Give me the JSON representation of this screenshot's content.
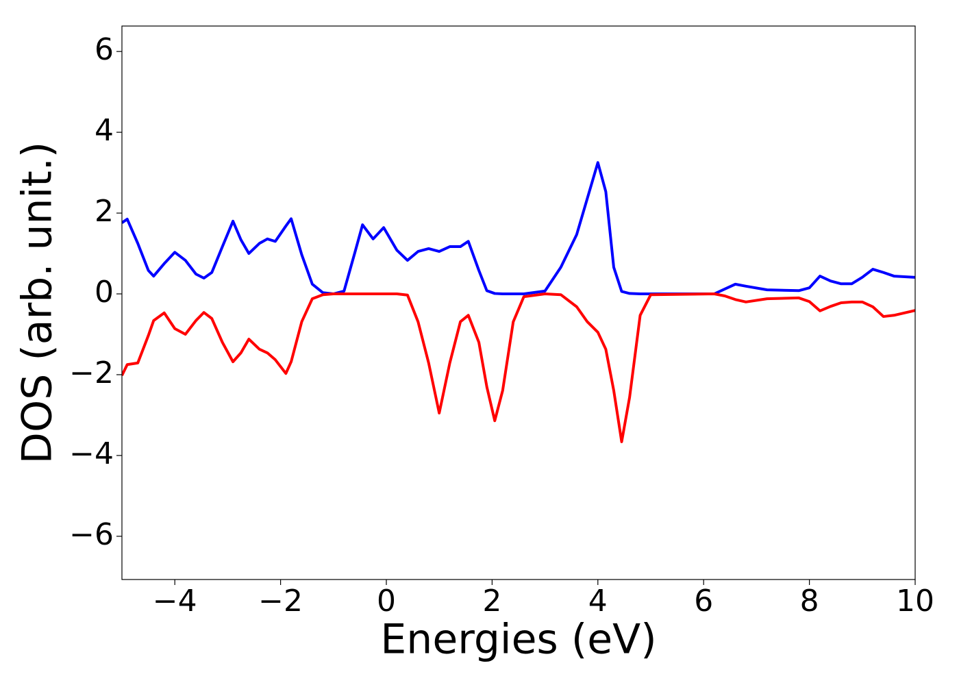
{
  "chart_data": {
    "type": "line",
    "xlabel": "Energies (eV)",
    "ylabel": "DOS (arb. unit.)",
    "xlim": [
      -5,
      10
    ],
    "ylim": [
      -7.07,
      6.63
    ],
    "xticks": [
      {
        "value": -4,
        "label": "−4"
      },
      {
        "value": -2,
        "label": "−2"
      },
      0,
      2,
      4,
      6,
      8,
      10
    ],
    "yticks": [
      {
        "value": -6,
        "label": "−6"
      },
      {
        "value": -4,
        "label": "−4"
      },
      {
        "value": -2,
        "label": "−2"
      },
      0,
      2,
      4,
      6
    ],
    "grid": false,
    "x": [
      -5,
      -4.9,
      -4.7,
      -4.5,
      -4.4,
      -4.2,
      -4,
      -3.8,
      -3.6,
      -3.45,
      -3.3,
      -3.1,
      -2.9,
      -2.75,
      -2.6,
      -2.4,
      -2.25,
      -2.1,
      -1.9,
      -1.8,
      -1.6,
      -1.4,
      -1.2,
      -1,
      -0.8,
      -0.6,
      -0.45,
      -0.25,
      -0.05,
      0.2,
      0.4,
      0.6,
      0.8,
      1.0,
      1.2,
      1.4,
      1.55,
      1.75,
      1.9,
      2.05,
      2.2,
      2.4,
      2.6,
      3.0,
      3.3,
      3.6,
      3.8,
      4.0,
      4.15,
      4.3,
      4.45,
      4.6,
      4.8,
      5.0,
      6.2,
      6.4,
      6.6,
      6.8,
      7.2,
      7.8,
      8.0,
      8.2,
      8.4,
      8.6,
      8.8,
      9.0,
      9.2,
      9.4,
      9.6,
      10
    ],
    "series": [
      {
        "color": "#0000ff",
        "values": [
          1.76,
          1.85,
          1.25,
          0.58,
          0.44,
          0.75,
          1.03,
          0.83,
          0.49,
          0.39,
          0.53,
          1.17,
          1.8,
          1.34,
          1.0,
          1.25,
          1.36,
          1.3,
          1.68,
          1.86,
          0.97,
          0.24,
          0.03,
          0,
          0.07,
          1.0,
          1.71,
          1.36,
          1.64,
          1.08,
          0.83,
          1.05,
          1.12,
          1.05,
          1.17,
          1.17,
          1.3,
          0.58,
          0.08,
          0.01,
          0,
          0,
          0,
          0.07,
          0.66,
          1.47,
          2.36,
          3.25,
          2.53,
          0.66,
          0.06,
          0.01,
          0,
          0,
          0,
          0.12,
          0.24,
          0.19,
          0.1,
          0.08,
          0.15,
          0.44,
          0.32,
          0.25,
          0.25,
          0.41,
          0.61,
          0.53,
          0.44,
          0.41
        ]
      },
      {
        "color": "#ff0000",
        "values": [
          -2.02,
          -1.75,
          -1.71,
          -1.03,
          -0.66,
          -0.47,
          -0.86,
          -1.0,
          -0.66,
          -0.46,
          -0.61,
          -1.2,
          -1.68,
          -1.46,
          -1.12,
          -1.37,
          -1.46,
          -1.63,
          -1.97,
          -1.68,
          -0.69,
          -0.12,
          -0.02,
          0,
          0,
          0,
          0,
          0,
          0,
          0,
          -0.03,
          -0.69,
          -1.71,
          -2.95,
          -1.71,
          -0.69,
          -0.53,
          -1.2,
          -2.3,
          -3.14,
          -2.39,
          -0.69,
          -0.07,
          0,
          -0.02,
          -0.32,
          -0.69,
          -0.95,
          -1.37,
          -2.39,
          -3.66,
          -2.56,
          -0.53,
          -0.02,
          0,
          -0.05,
          -0.14,
          -0.2,
          -0.12,
          -0.1,
          -0.19,
          -0.42,
          -0.31,
          -0.22,
          -0.2,
          -0.2,
          -0.32,
          -0.56,
          -0.53,
          -0.41
        ]
      }
    ]
  }
}
